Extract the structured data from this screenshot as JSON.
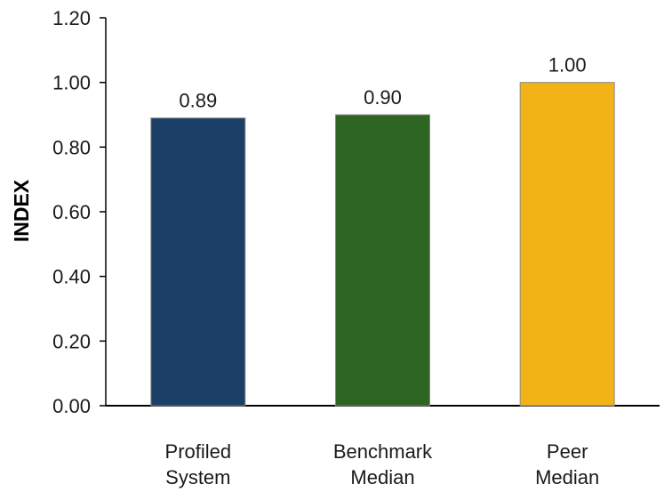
{
  "chart_data": {
    "type": "bar",
    "categories": [
      [
        "Profiled",
        "System"
      ],
      [
        "Benchmark",
        "Median"
      ],
      [
        "Peer",
        "Median"
      ]
    ],
    "values": [
      0.89,
      0.9,
      1.0
    ],
    "value_labels": [
      "0.89",
      "0.90",
      "1.00"
    ],
    "colors": [
      "#1b3f66",
      "#2e6523",
      "#f2b316"
    ],
    "xlabel": "",
    "ylabel": "INDEX",
    "ylim": [
      0,
      1.2
    ],
    "yticks": [
      0,
      0.2,
      0.4,
      0.6,
      0.8,
      1.0,
      1.2
    ],
    "ytick_labels": [
      "0.00",
      "0.20",
      "0.40",
      "0.60",
      "0.80",
      "1.00",
      "1.20"
    ],
    "grid": false,
    "legend": "none"
  }
}
